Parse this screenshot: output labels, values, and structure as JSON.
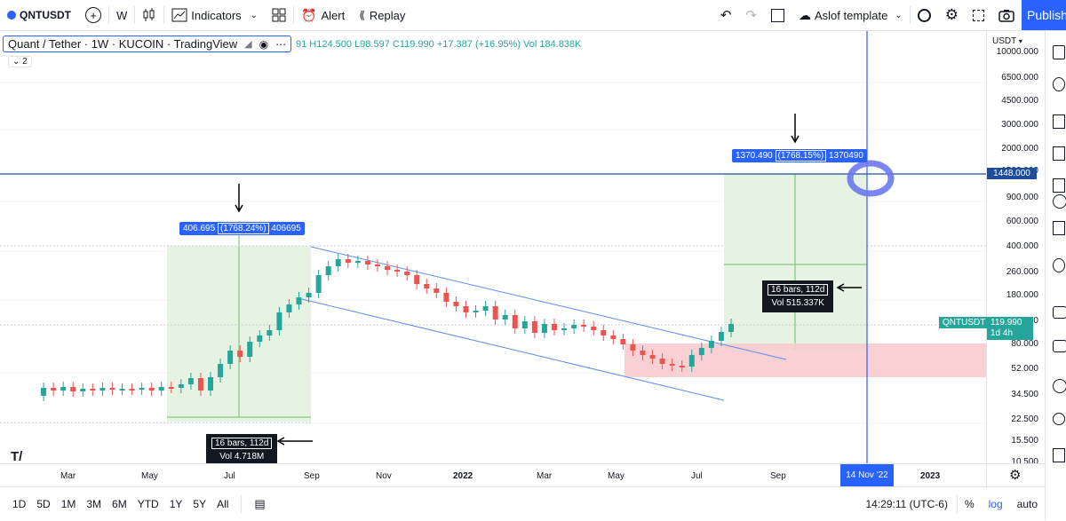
{
  "toolbar": {
    "symbol": "QNTUSDT",
    "add_symbol": "+",
    "interval": "W",
    "indicators_label": "Indicators",
    "alert_label": "Alert",
    "replay_label": "Replay",
    "template_label": "Aslof template",
    "publish_label": "Publish"
  },
  "legend": {
    "title": "Quant / Tether · 1W · KUCOIN · TradingView",
    "ohlc": "91 H124.500 L98.597 C119.990 +17.387 (+16.95%) Vol 184.838K",
    "collapsed_count": "2"
  },
  "price_scale": {
    "currency": "USDT",
    "labels": [
      "10000.000",
      "6500.000",
      "4500.000",
      "3000.000",
      "2000.000",
      "1500.000",
      "900.000",
      "600.000",
      "400.000",
      "260.000",
      "180.000",
      "120.000",
      "80.000",
      "52.000",
      "34.500",
      "22.500",
      "15.500",
      "10.500"
    ],
    "hline_price": "1448.000",
    "symbol_tag": "QNTUSDT",
    "last_price": "119.990",
    "countdown": "1d 4h"
  },
  "time_scale": {
    "labels": [
      "Mar",
      "May",
      "Jul",
      "Sep",
      "Nov",
      "2022",
      "Mar",
      "May",
      "Jul",
      "Sep",
      "14 Nov '22",
      "2023"
    ]
  },
  "measure_1": {
    "stats_a": "406.695",
    "stats_pct": "(1768.24%)",
    "stats_b": "406695",
    "bars": "16 bars, 112d",
    "vol": "Vol 4.718M"
  },
  "measure_2": {
    "stats_a": "1370.490",
    "stats_pct": "(1768.15%)",
    "stats_b": "1370490",
    "bars": "16 bars, 112d",
    "vol": "Vol 515.337K"
  },
  "bottom": {
    "ranges": [
      "1D",
      "5D",
      "1M",
      "3M",
      "6M",
      "YTD",
      "1Y",
      "5Y",
      "All"
    ],
    "time": "14:29:11 (UTC-6)",
    "pct": "%",
    "log": "log",
    "auto": "auto"
  },
  "colors": {
    "up": "#26a69a",
    "down": "#ef5350",
    "accent": "#2962ff",
    "channel": "#5b8def",
    "hline": "#1e4d9b"
  },
  "chart_data": {
    "type": "candlestick",
    "y_scale": "log",
    "symbol": "QNTUSDT",
    "interval": "1W",
    "exchange": "KUCOIN",
    "last": {
      "high": 124.5,
      "low": 98.597,
      "close": 119.99,
      "change": 17.387,
      "change_pct": 16.95,
      "volume": "184.838K"
    },
    "hline": 1448.0
  }
}
